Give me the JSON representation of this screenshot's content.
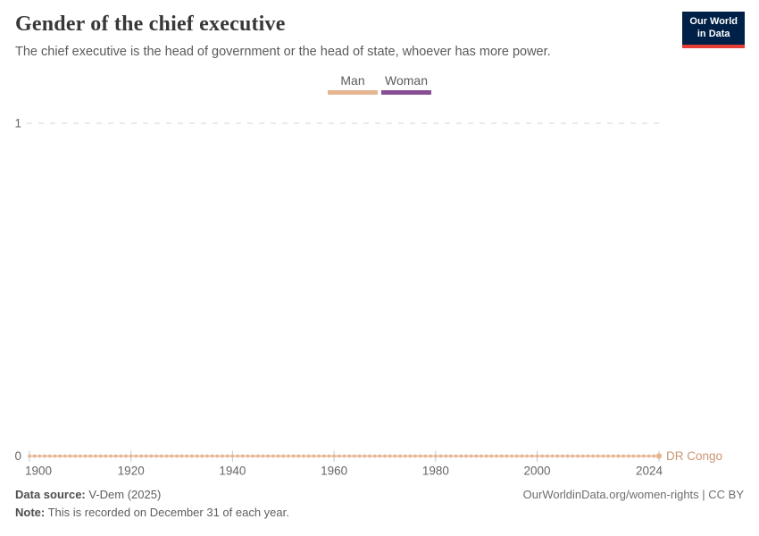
{
  "header": {
    "title": "Gender of the chief executive",
    "subtitle": "The chief executive is the head of government or the head of state, whoever has more power.",
    "logo": {
      "line1": "Our World",
      "line2": "in Data",
      "bg_color": "#002147",
      "accent_color": "#e63e36"
    }
  },
  "legend": {
    "items": [
      {
        "label": "Man",
        "color": "#e6b692"
      },
      {
        "label": "Woman",
        "color": "#884d93"
      }
    ]
  },
  "chart_data": {
    "type": "line",
    "title": "Gender of the chief executive",
    "xlabel": "",
    "ylabel": "",
    "xlim": [
      1900,
      2024
    ],
    "ylim": [
      0,
      1
    ],
    "x_ticks": [
      1900,
      1920,
      1940,
      1960,
      1980,
      2000,
      2024
    ],
    "y_ticks": [
      0,
      1
    ],
    "grid": "dashed horizontal gridline at y=1 only",
    "legend_position": "top-center",
    "legend_entries": [
      "Man",
      "Woman"
    ],
    "series": [
      {
        "name": "DR Congo",
        "category": "Man",
        "color": "#e6b692",
        "label_color": "#cb9472",
        "x_start": 1900,
        "x_end": 2024,
        "constant_value": 0,
        "note": "value 0 (category Man) for every year 1900-2024, drawn as one dot per year"
      }
    ],
    "style": {
      "grid_color": "#d6d6d6",
      "tick_color": "#c9c9c9",
      "axis_label_color": "#666666"
    }
  },
  "footer": {
    "source_label": "Data source:",
    "source_value": " V-Dem (2025)",
    "note_label": "Note:",
    "note_value": " This is recorded on December 31 of each year.",
    "credit": "OurWorldinData.org/women-rights | CC BY"
  }
}
